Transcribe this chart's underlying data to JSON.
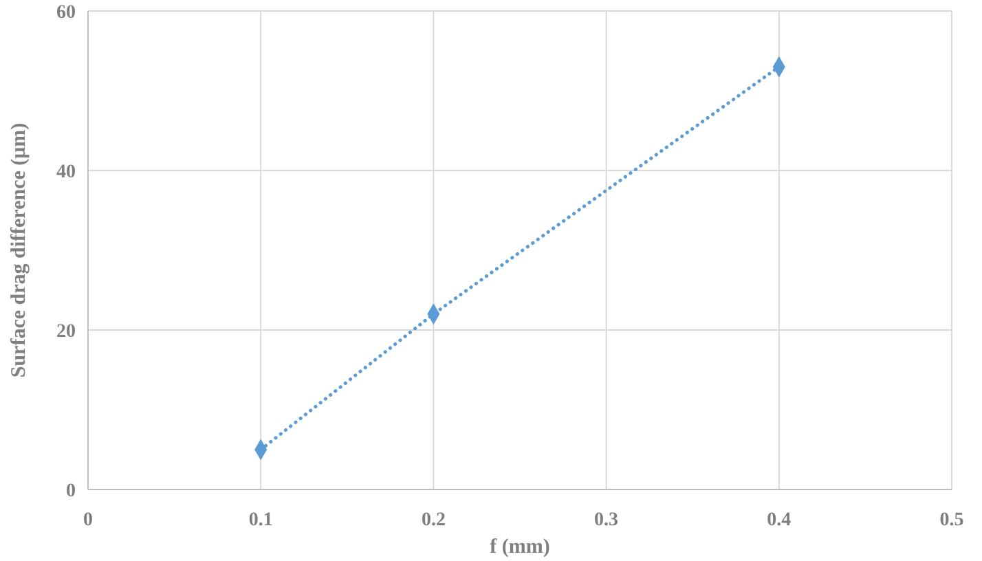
{
  "chart_data": {
    "type": "line",
    "xlabel": "f (mm)",
    "ylabel": "Surface drag difference (μm)",
    "x": [
      0.1,
      0.2,
      0.4
    ],
    "series": [
      {
        "color": "#5b9bd5",
        "values": [
          5,
          22,
          53
        ]
      }
    ],
    "xlim": [
      0,
      0.5
    ],
    "xticks": [
      0,
      0.1,
      0.2,
      0.3,
      0.4,
      0.5
    ],
    "ylim": [
      0,
      60
    ],
    "yticks": [
      0,
      20,
      40,
      60
    ],
    "grid": true,
    "marker": "diamond",
    "line_style": "dotted"
  }
}
